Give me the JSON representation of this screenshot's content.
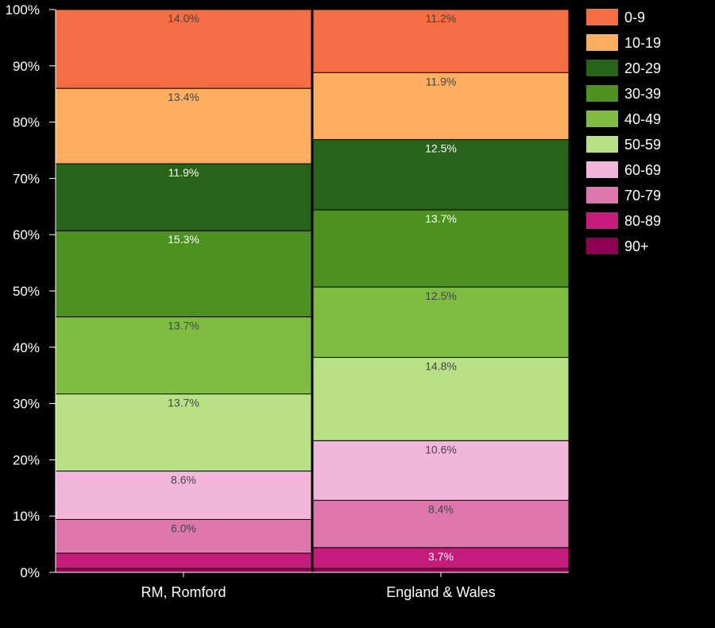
{
  "chart_data": {
    "type": "bar",
    "stacked": true,
    "normalized_percent": true,
    "categories": [
      "RM, Romford",
      "England & Wales"
    ],
    "ylim": [
      0,
      100
    ],
    "y_ticks": [
      "0%",
      "10%",
      "20%",
      "30%",
      "40%",
      "50%",
      "60%",
      "70%",
      "80%",
      "90%",
      "100%"
    ],
    "legend_position": "right",
    "grid": false,
    "series": [
      {
        "name": "90+",
        "color": "#8e0152",
        "values": [
          0.7,
          0.7
        ],
        "labels": [
          "",
          ""
        ]
      },
      {
        "name": "80-89",
        "color": "#c51b7d",
        "values": [
          2.7,
          3.7
        ],
        "labels": [
          "",
          "3.7%"
        ]
      },
      {
        "name": "70-79",
        "color": "#de77ae",
        "values": [
          6.0,
          8.4
        ],
        "labels": [
          "6.0%",
          "8.4%"
        ]
      },
      {
        "name": "60-69",
        "color": "#f1b6da",
        "values": [
          8.6,
          10.6
        ],
        "labels": [
          "8.6%",
          "10.6%"
        ]
      },
      {
        "name": "50-59",
        "color": "#b8e186",
        "values": [
          13.7,
          14.8
        ],
        "labels": [
          "13.7%",
          "14.8%"
        ]
      },
      {
        "name": "40-49",
        "color": "#7fbc41",
        "values": [
          13.7,
          12.5
        ],
        "labels": [
          "13.7%",
          "12.5%"
        ]
      },
      {
        "name": "30-39",
        "color": "#4d9221",
        "values": [
          15.3,
          13.7
        ],
        "labels": [
          "15.3%",
          "13.7%"
        ]
      },
      {
        "name": "20-29",
        "color": "#276419",
        "values": [
          11.9,
          12.5
        ],
        "labels": [
          "11.9%",
          "12.5%"
        ]
      },
      {
        "name": "10-19",
        "color": "#fdae61",
        "values": [
          13.4,
          11.9
        ],
        "labels": [
          "13.4%",
          "11.9%"
        ]
      },
      {
        "name": "0-9",
        "color": "#f46d43",
        "values": [
          14.0,
          11.2
        ],
        "labels": [
          "14.0%",
          "11.2%"
        ]
      }
    ]
  }
}
